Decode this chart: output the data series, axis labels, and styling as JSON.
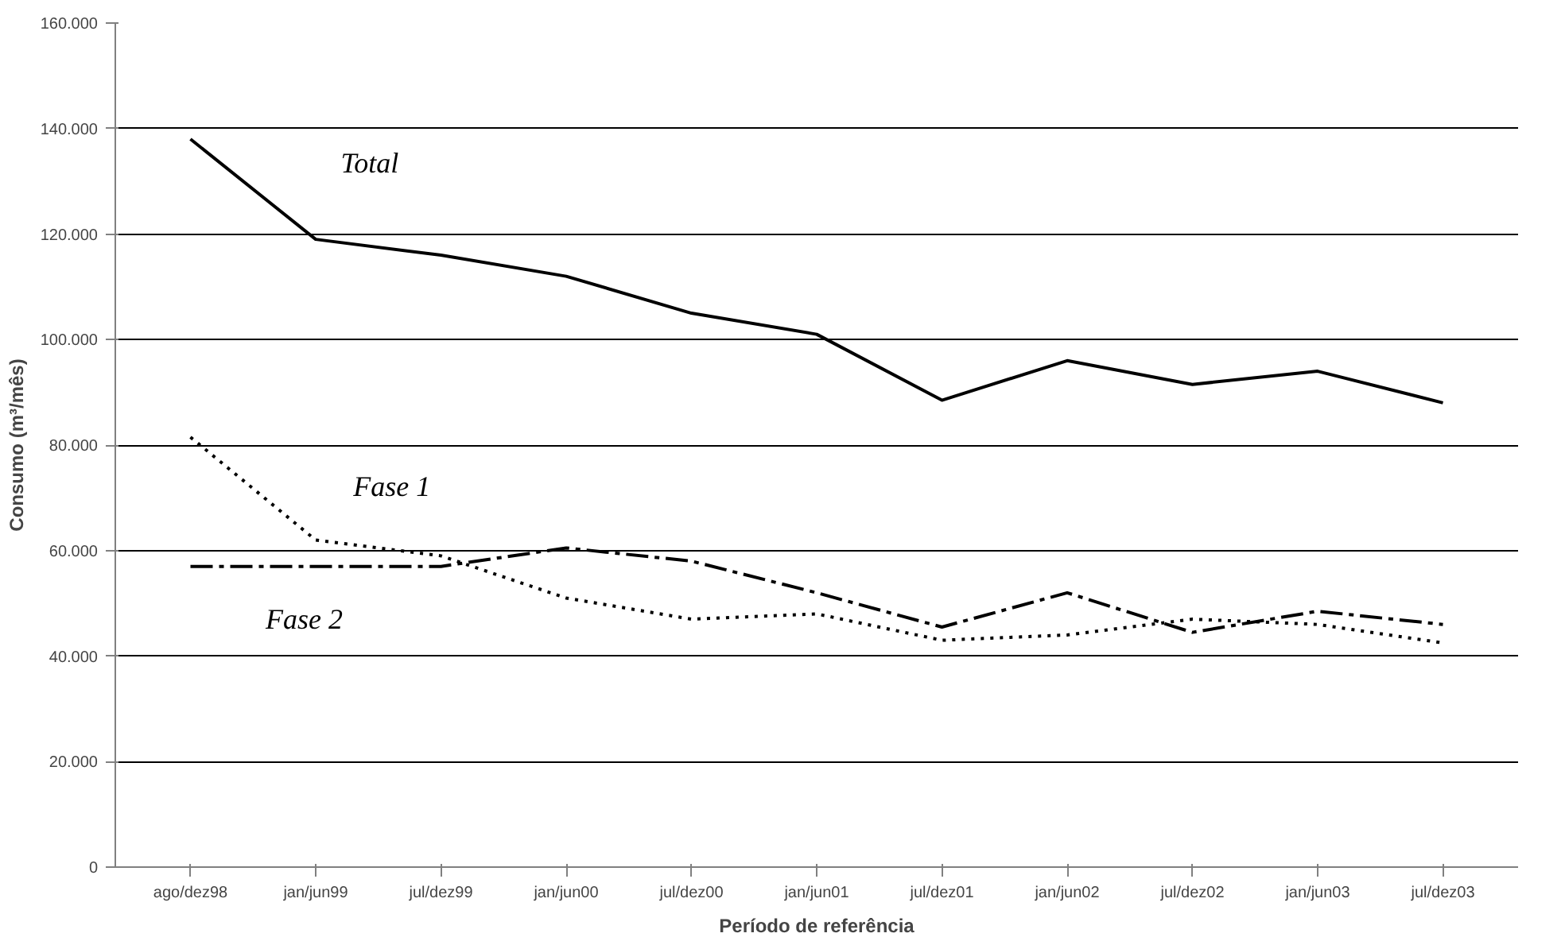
{
  "chart_data": {
    "type": "line",
    "xlabel": "Período de referência",
    "ylabel": "Consumo (m³/mês)",
    "categories": [
      "ago/dez98",
      "jan/jun99",
      "jul/dez99",
      "jan/jun00",
      "jul/dez00",
      "jan/jun01",
      "jul/dez01",
      "jan/jun02",
      "jul/dez02",
      "jan/jun03",
      "jul/dez03"
    ],
    "series": [
      {
        "name": "Total",
        "color": "#000000",
        "line_style": "solid",
        "values": [
          138000,
          119000,
          116000,
          112000,
          105000,
          101000,
          88500,
          96000,
          91500,
          94000,
          88000
        ]
      },
      {
        "name": "Fase 1",
        "color": "#000000",
        "line_style": "dotted",
        "values": [
          81500,
          62000,
          59000,
          51000,
          47000,
          48000,
          43000,
          44000,
          47000,
          46000,
          42500
        ]
      },
      {
        "name": "Fase 2",
        "color": "#000000",
        "line_style": "dashdot",
        "values": [
          57000,
          57000,
          57000,
          60500,
          58000,
          52000,
          45500,
          52000,
          44500,
          48500,
          46000
        ]
      }
    ],
    "ylim": [
      0,
      160000
    ],
    "yticks": [
      {
        "value": 0,
        "label": "0"
      },
      {
        "value": 20000,
        "label": "20.000"
      },
      {
        "value": 40000,
        "label": "40.000"
      },
      {
        "value": 60000,
        "label": "60.000"
      },
      {
        "value": 80000,
        "label": "80.000"
      },
      {
        "value": 100000,
        "label": "100.000"
      },
      {
        "value": 120000,
        "label": "120.000"
      },
      {
        "value": 140000,
        "label": "140.000"
      },
      {
        "value": 160000,
        "label": "160.000"
      }
    ],
    "grid": "y",
    "legend": false
  }
}
